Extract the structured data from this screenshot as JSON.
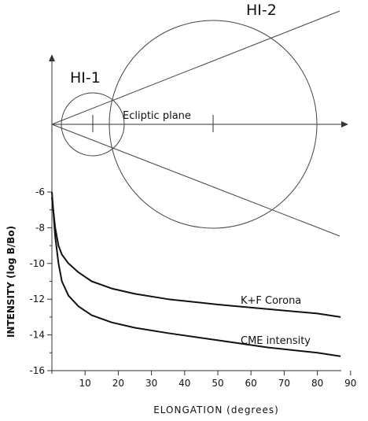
{
  "diagram": {
    "label_hi1": "HI-1",
    "label_hi2": "HI-2",
    "label_ecliptic": "Ecliptic plane",
    "colors": {
      "line": "#333333",
      "curve": "#111111"
    }
  },
  "chart_data": {
    "type": "line",
    "title": "",
    "xlabel": "ELONGATION (degrees)",
    "ylabel": "INTENSITY (log B/Bo)",
    "xlim": [
      0,
      95
    ],
    "ylim": [
      -16,
      -6
    ],
    "x_ticks": [
      "10",
      "20",
      "30",
      "40",
      "50",
      "60",
      "70",
      "80",
      "90"
    ],
    "y_ticks": [
      "-6",
      "-8",
      "-10",
      "-12",
      "-14",
      "-16"
    ],
    "series": [
      {
        "name": "K+F Corona",
        "x": [
          0,
          1,
          2,
          3,
          5,
          8,
          12,
          18,
          25,
          35,
          50,
          65,
          80,
          87
        ],
        "y": [
          -6.3,
          -8.0,
          -9.0,
          -9.5,
          -10.0,
          -10.5,
          -11.0,
          -11.4,
          -11.7,
          -12.0,
          -12.3,
          -12.55,
          -12.8,
          -13.0
        ]
      },
      {
        "name": "CME intensity",
        "x": [
          0,
          1,
          2,
          3,
          5,
          8,
          12,
          18,
          25,
          35,
          50,
          65,
          80,
          87
        ],
        "y": [
          -6.0,
          -8.5,
          -10.0,
          -11.0,
          -11.8,
          -12.4,
          -12.9,
          -13.3,
          -13.6,
          -13.9,
          -14.3,
          -14.7,
          -15.0,
          -15.2
        ]
      }
    ]
  }
}
